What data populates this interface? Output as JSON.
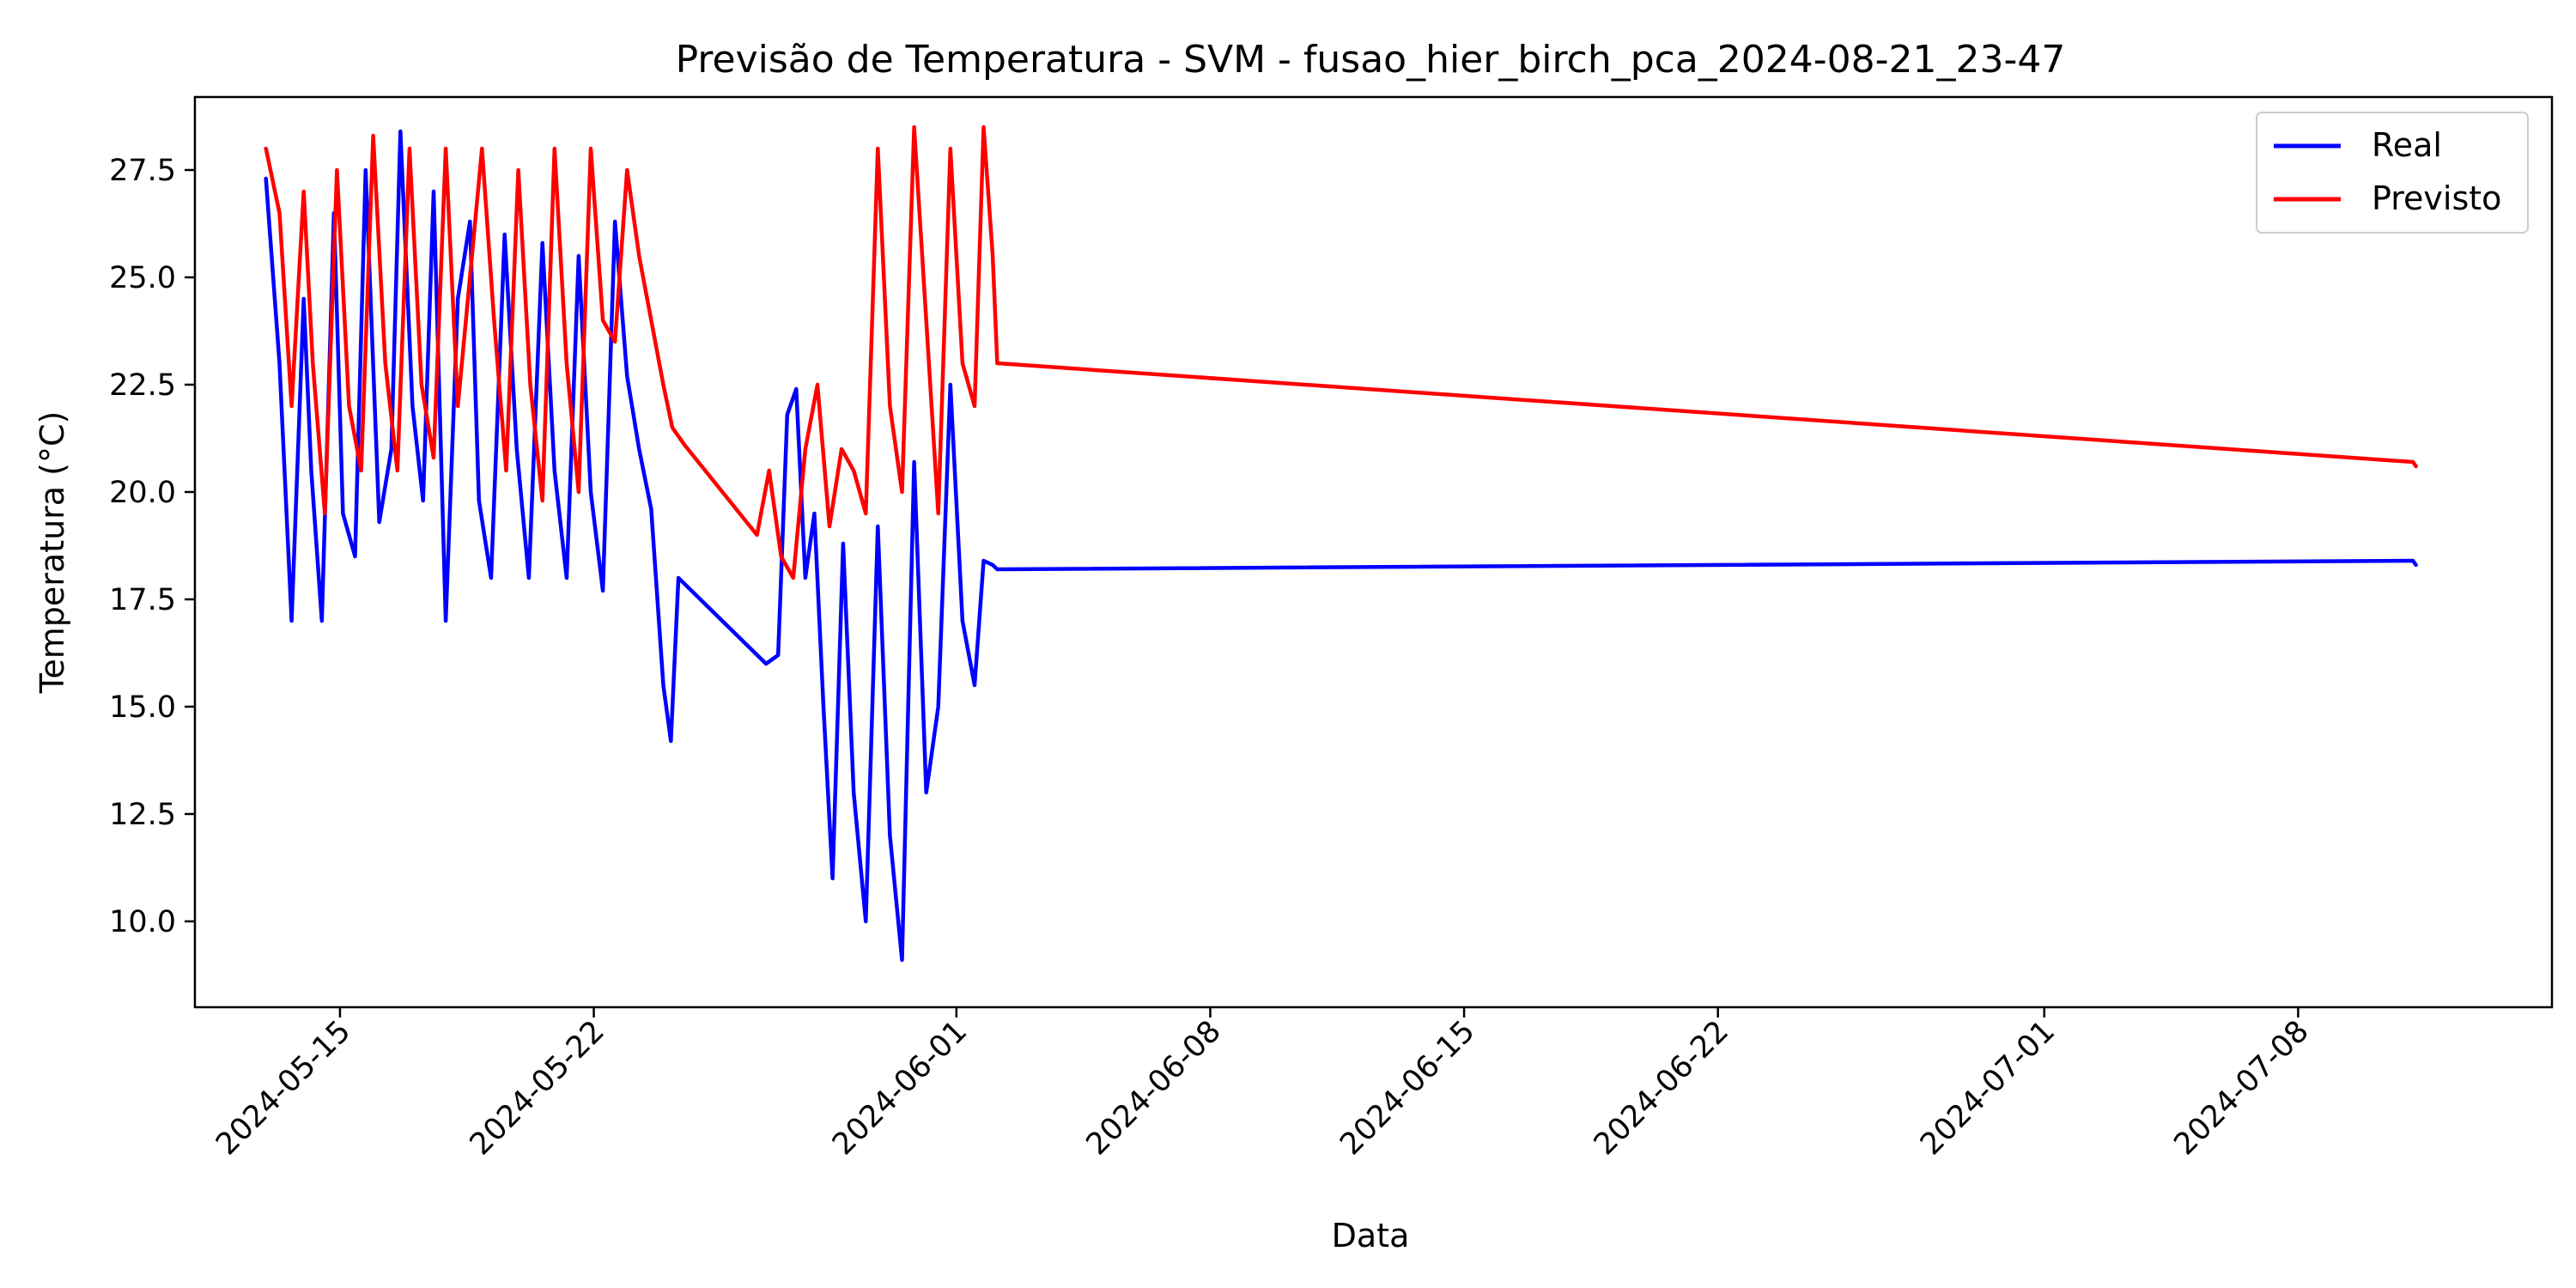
{
  "chart_data": {
    "type": "line",
    "title": "Previsão de Temperatura - SVM - fusao_hier_birch_pca_2024-08-21_23-47",
    "xlabel": "Data",
    "ylabel": "Temperatura (°C)",
    "xlim": [
      "2024-05-11T00:00",
      "2024-07-15T00:00"
    ],
    "ylim": [
      8.0,
      29.2
    ],
    "x_ticks": [
      "2024-05-15",
      "2024-05-22",
      "2024-06-01",
      "2024-06-08",
      "2024-06-15",
      "2024-06-22",
      "2024-07-01",
      "2024-07-08"
    ],
    "y_ticks": [
      "10.0",
      "12.5",
      "15.0",
      "17.5",
      "20.0",
      "22.5",
      "25.0",
      "27.5"
    ],
    "grid": false,
    "legend_position": "top-right",
    "series": [
      {
        "name": "Real",
        "color": "#0000ff",
        "x": [
          "2024-05-12T23:00",
          "2024-05-13T08:00",
          "2024-05-13T16:00",
          "2024-05-14T00:00",
          "2024-05-14T05:00",
          "2024-05-14T12:00",
          "2024-05-14T20:00",
          "2024-05-15T02:00",
          "2024-05-15T10:00",
          "2024-05-15T17:00",
          "2024-05-16T02:00",
          "2024-05-16T10:00",
          "2024-05-16T16:00",
          "2024-05-17T00:00",
          "2024-05-17T07:00",
          "2024-05-17T14:00",
          "2024-05-17T22:00",
          "2024-05-18T06:00",
          "2024-05-18T14:00",
          "2024-05-18T20:00",
          "2024-05-19T04:00",
          "2024-05-19T13:00",
          "2024-05-19T21:00",
          "2024-05-20T05:00",
          "2024-05-20T14:00",
          "2024-05-20T22:00",
          "2024-05-21T06:00",
          "2024-05-21T14:00",
          "2024-05-21T22:00",
          "2024-05-22T06:00",
          "2024-05-22T14:00",
          "2024-05-22T22:00",
          "2024-05-23T06:00",
          "2024-05-23T14:00",
          "2024-05-23T22:00",
          "2024-05-24T03:00",
          "2024-05-24T08:00",
          "2024-05-26T18:00",
          "2024-05-27T02:00",
          "2024-05-27T08:00",
          "2024-05-27T14:00",
          "2024-05-27T20:00",
          "2024-05-28T02:00",
          "2024-05-28T08:00",
          "2024-05-28T14:00",
          "2024-05-28T21:00",
          "2024-05-29T04:00",
          "2024-05-29T12:00",
          "2024-05-29T20:00",
          "2024-05-30T04:00",
          "2024-05-30T12:00",
          "2024-05-30T20:00",
          "2024-05-31T04:00",
          "2024-05-31T12:00",
          "2024-05-31T20:00",
          "2024-06-01T04:00",
          "2024-06-01T12:00",
          "2024-06-01T18:00",
          "2024-06-02T00:00",
          "2024-06-02T03:00",
          "2024-07-11T04:00",
          "2024-07-11T06:00"
        ],
        "y": [
          27.3,
          23.0,
          17.0,
          24.5,
          20.5,
          17.0,
          26.5,
          19.5,
          18.5,
          27.5,
          19.3,
          21.0,
          28.4,
          22.0,
          19.8,
          27.0,
          17.0,
          24.5,
          26.3,
          19.8,
          18.0,
          26.0,
          21.0,
          18.0,
          25.8,
          20.5,
          18.0,
          25.5,
          20.0,
          17.7,
          26.3,
          22.7,
          21.0,
          19.6,
          15.5,
          14.2,
          18.0,
          16.0,
          16.2,
          21.8,
          22.4,
          18.0,
          19.5,
          15.0,
          11.0,
          18.8,
          13.0,
          10.0,
          19.2,
          12.0,
          9.1,
          20.7,
          13.0,
          15.0,
          22.5,
          17.0,
          15.5,
          18.4,
          18.3,
          18.2,
          18.4,
          18.3
        ],
        "note_hidden": ""
      },
      {
        "name": "Previsto",
        "color": "#ff0000",
        "x": [
          "2024-05-12T23:00",
          "2024-05-13T08:00",
          "2024-05-13T16:00",
          "2024-05-14T00:00",
          "2024-05-14T06:00",
          "2024-05-14T14:00",
          "2024-05-14T22:00",
          "2024-05-15T06:00",
          "2024-05-15T14:00",
          "2024-05-15T22:00",
          "2024-05-16T06:00",
          "2024-05-16T14:00",
          "2024-05-16T22:00",
          "2024-05-17T06:00",
          "2024-05-17T14:00",
          "2024-05-17T22:00",
          "2024-05-18T06:00",
          "2024-05-18T14:00",
          "2024-05-18T22:00",
          "2024-05-19T06:00",
          "2024-05-19T14:00",
          "2024-05-19T22:00",
          "2024-05-20T06:00",
          "2024-05-20T14:00",
          "2024-05-20T22:00",
          "2024-05-21T06:00",
          "2024-05-21T14:00",
          "2024-05-21T22:00",
          "2024-05-22T06:00",
          "2024-05-22T14:00",
          "2024-05-22T22:00",
          "2024-05-23T06:00",
          "2024-05-23T14:00",
          "2024-05-23T22:00",
          "2024-05-24T04:00",
          "2024-05-24T12:00",
          "2024-05-26T12:00",
          "2024-05-26T20:00",
          "2024-05-27T04:00",
          "2024-05-27T12:00",
          "2024-05-27T20:00",
          "2024-05-28T04:00",
          "2024-05-28T12:00",
          "2024-05-28T20:00",
          "2024-05-29T04:00",
          "2024-05-29T12:00",
          "2024-05-29T20:00",
          "2024-05-30T04:00",
          "2024-05-30T12:00",
          "2024-05-30T20:00",
          "2024-05-31T04:00",
          "2024-05-31T12:00",
          "2024-05-31T20:00",
          "2024-06-01T04:00",
          "2024-06-01T12:00",
          "2024-06-01T18:00",
          "2024-06-02T00:00",
          "2024-06-02T03:00",
          "2024-07-11T04:00",
          "2024-07-11T06:00"
        ],
        "y": [
          28.0,
          26.5,
          22.0,
          27.0,
          23.0,
          19.5,
          27.5,
          22.0,
          20.5,
          28.3,
          23.0,
          20.5,
          28.0,
          22.5,
          20.8,
          28.0,
          22.0,
          25.0,
          28.0,
          24.0,
          20.5,
          27.5,
          22.5,
          19.8,
          28.0,
          23.0,
          20.0,
          28.0,
          24.0,
          23.5,
          27.5,
          25.5,
          24.0,
          22.5,
          21.5,
          21.1,
          19.0,
          20.5,
          18.5,
          18.0,
          21.0,
          22.5,
          19.2,
          21.0,
          20.5,
          19.5,
          28.0,
          22.0,
          20.0,
          28.5,
          24.0,
          19.5,
          28.0,
          23.0,
          22.0,
          28.5,
          25.5,
          23.0,
          20.7,
          20.6
        ]
      }
    ]
  }
}
